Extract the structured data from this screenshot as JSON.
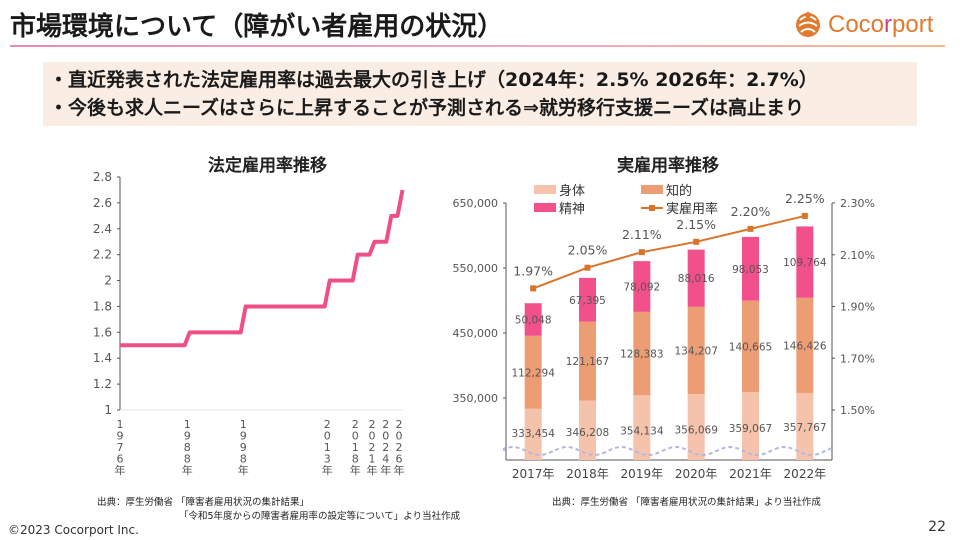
{
  "header": {
    "title": "市場環境について（障がい者雇用の状況）",
    "logo_text_1": "Coco",
    "logo_text_2": "r",
    "logo_text_3": "port",
    "colors": {
      "accent_orange": "#e07a2e",
      "accent_pink": "#d0407a"
    }
  },
  "summary": {
    "bullets": [
      "・直近発表された法定雇用率は過去最大の引き上げ（2024年：2.5% 2026年：2.7%）",
      "・今後も求人ニーズはさらに上昇することが予測される⇒就労移行支援ニーズは高止まり"
    ]
  },
  "chart_data": [
    {
      "type": "line",
      "title": "法定雇用率推移",
      "step": true,
      "x": [
        1976,
        1988,
        1998,
        2013,
        2018,
        2021,
        2024,
        2026
      ],
      "x_tick_labels": [
        "1976年",
        "1988年",
        "1998年",
        "2013年",
        "2018年",
        "2021年",
        "2024年",
        "2026年"
      ],
      "values": [
        1.5,
        1.6,
        1.8,
        2.0,
        2.2,
        2.3,
        2.5,
        2.7
      ],
      "ylim": [
        1,
        2.8
      ],
      "y_ticks": [
        "1",
        "1.2",
        "1.4",
        "1.6",
        "1.8",
        "2",
        "2.2",
        "2.4",
        "2.6",
        "2.8"
      ],
      "xlabel": "",
      "ylabel": "",
      "series_color": "#ee4f86",
      "grid": false
    },
    {
      "type": "bar",
      "title": "実雇用率推移",
      "stacked": true,
      "categories": [
        "2017年",
        "2018年",
        "2019年",
        "2020年",
        "2021年",
        "2022年"
      ],
      "series": [
        {
          "name": "身体",
          "values": [
            333454,
            346208,
            354134,
            356069,
            359067,
            357767
          ],
          "color": "#f5c2ab",
          "labels": [
            "333,454",
            "346,208",
            "354,134",
            "356,069",
            "359,067",
            "357,767"
          ]
        },
        {
          "name": "知的",
          "values": [
            112294,
            121167,
            128383,
            134207,
            140665,
            146426
          ],
          "color": "#ec9d74",
          "labels": [
            "112,294",
            "121,167",
            "128,383",
            "134,207",
            "140,665",
            "146,426"
          ]
        },
        {
          "name": "精神",
          "values": [
            50048,
            67395,
            78092,
            88016,
            98053,
            109764
          ],
          "color": "#f1508a",
          "labels": [
            "50,048",
            "67,395",
            "78,092",
            "88,016",
            "98,053",
            "109,764"
          ]
        }
      ],
      "line_series": {
        "name": "実雇用率",
        "values": [
          1.97,
          2.05,
          2.11,
          2.15,
          2.2,
          2.25
        ],
        "labels": [
          "1.97%",
          "2.05%",
          "2.11%",
          "2.15%",
          "2.20%",
          "2.25%"
        ],
        "color": "#d9742a",
        "axis": "right"
      },
      "y_left_ticks": [
        "350,000",
        "450,000",
        "550,000",
        "650,000"
      ],
      "y_left_tick_values": [
        350000,
        450000,
        550000,
        650000
      ],
      "y_right_ticks": [
        "1.50%",
        "1.70%",
        "1.90%",
        "2.10%",
        "2.30%"
      ],
      "y_right_tick_values": [
        1.5,
        1.7,
        1.9,
        2.1,
        2.3
      ],
      "ylim_left": [
        254600,
        650000
      ],
      "ylim_right": [
        1.5,
        2.3
      ],
      "axis_break": true,
      "legend": [
        "身体",
        "知的",
        "精神",
        "実雇用率"
      ],
      "legend_position": "top"
    }
  ],
  "sources": {
    "left_line1": "出典：厚生労働省 「障害者雇用状況の集計結果」",
    "left_line2": "「令和5年度からの障害者雇用率の設定等について」より当社作成",
    "right": "出典：厚生労働省 「障害者雇用状況の集計結果」より当社作成"
  },
  "footer": {
    "copyright": "©2023 Cocorport Inc.",
    "page_number": "22"
  }
}
